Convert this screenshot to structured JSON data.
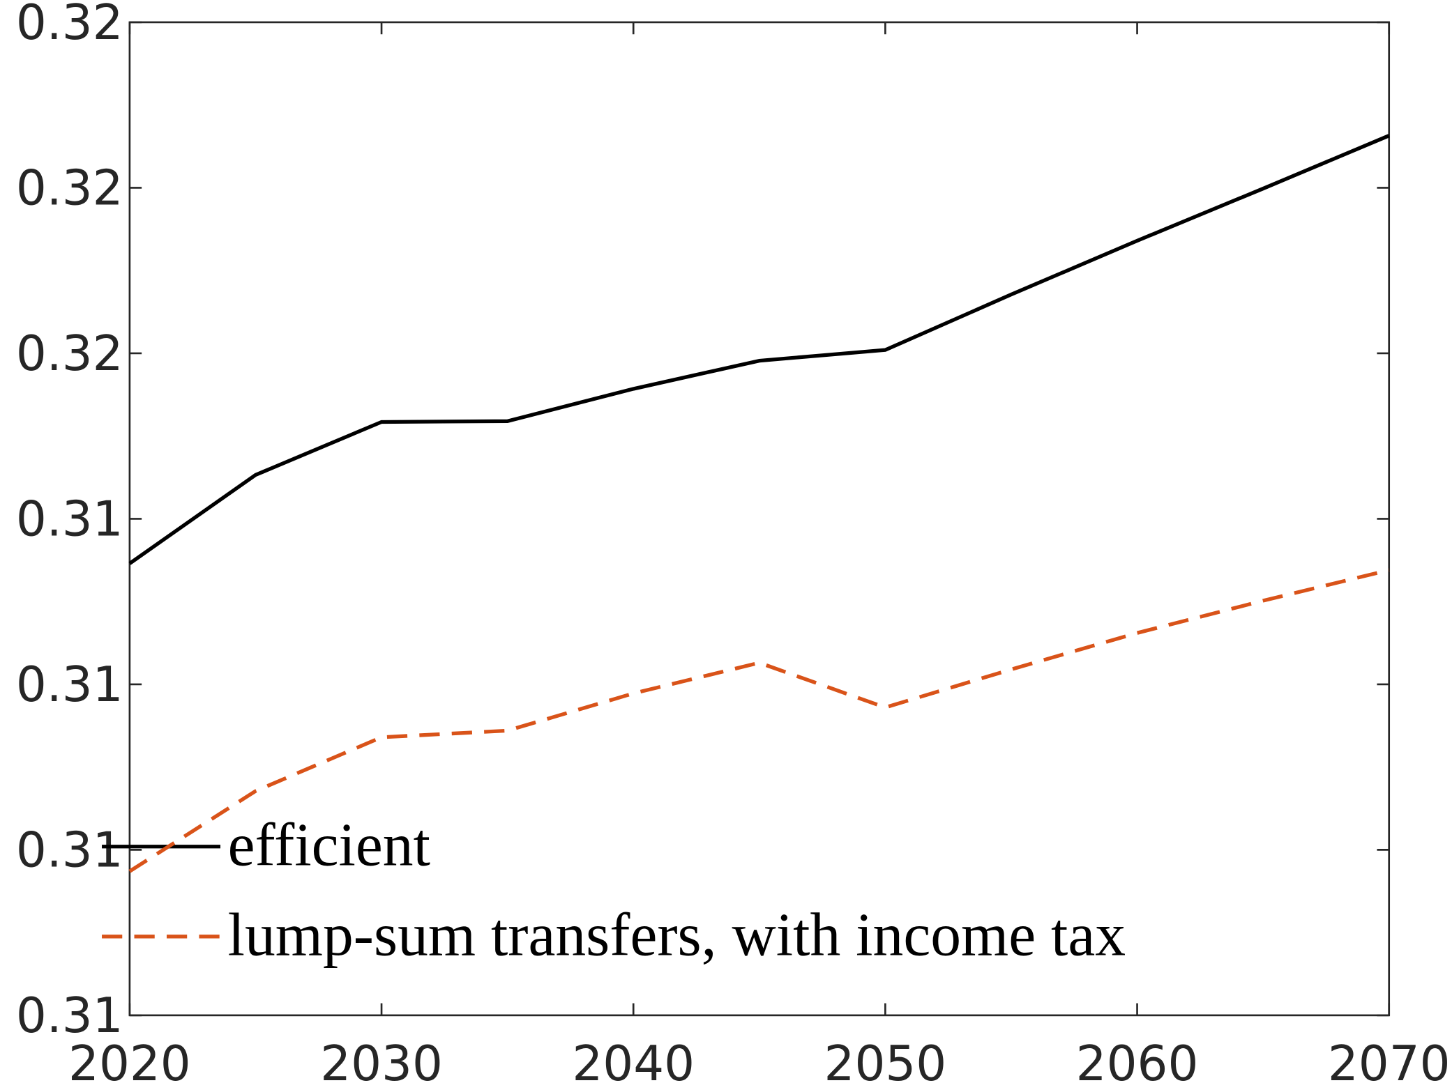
{
  "chart_data": {
    "type": "line",
    "x": [
      2020,
      2025,
      2030,
      2035,
      2040,
      2045,
      2050,
      2055,
      2060,
      2065,
      2070
    ],
    "series": [
      {
        "name": "efficient",
        "color": "#000000",
        "dash": false,
        "values": [
          0.31346,
          0.31453,
          0.31517,
          0.31518,
          0.31557,
          0.31591,
          0.31604,
          0.31671,
          0.31736,
          0.31799,
          0.31863
        ]
      },
      {
        "name": "lump-sum transfers, with income tax",
        "color": "#d95319",
        "dash": true,
        "values": [
          0.30974,
          0.31071,
          0.31136,
          0.31144,
          0.31189,
          0.31226,
          0.31172,
          0.31218,
          0.31262,
          0.31301,
          0.31338
        ]
      }
    ],
    "xlim": [
      2020,
      2070
    ],
    "xticks": [
      2020,
      2030,
      2040,
      2050,
      2060,
      2070
    ],
    "ylim": [
      0.308,
      0.32
    ],
    "yticks": [
      {
        "value": 0.308,
        "label": "0.31"
      },
      {
        "value": 0.31,
        "label": "0.31"
      },
      {
        "value": 0.312,
        "label": "0.31"
      },
      {
        "value": 0.314,
        "label": "0.31"
      },
      {
        "value": 0.316,
        "label": "0.32"
      },
      {
        "value": 0.318,
        "label": "0.32"
      },
      {
        "value": 0.32,
        "label": "0.32"
      }
    ],
    "grid": false,
    "legend": "lower left"
  }
}
